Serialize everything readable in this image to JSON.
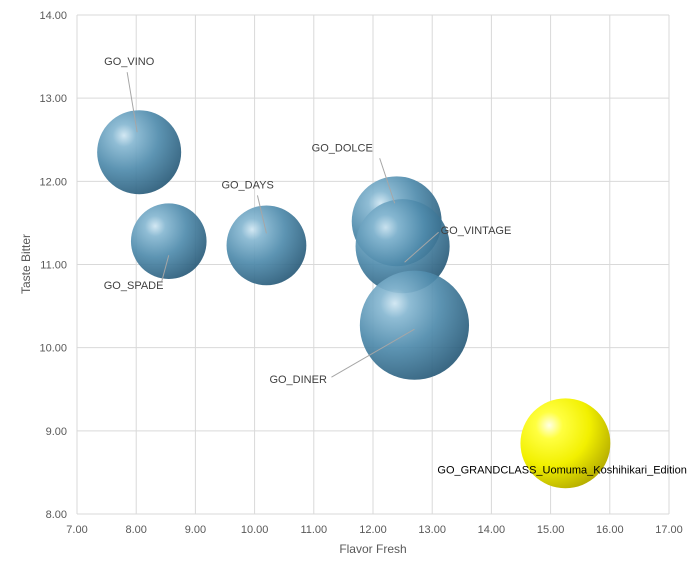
{
  "chart_data": {
    "type": "bubble",
    "xlabel": "Flavor Fresh",
    "ylabel": "Taste Bitter",
    "xlim": [
      7.0,
      17.0
    ],
    "ylim": [
      8.0,
      14.0
    ],
    "x_ticks": [
      "7.00",
      "8.00",
      "9.00",
      "10.00",
      "11.00",
      "12.00",
      "13.00",
      "14.00",
      "15.00",
      "16.00",
      "17.00"
    ],
    "y_ticks": [
      "8.00",
      "9.00",
      "10.00",
      "11.00",
      "12.00",
      "13.00",
      "14.00"
    ],
    "grid": true,
    "colors": {
      "default": "#4a86a8",
      "highlight": "#ffff00"
    },
    "points": [
      {
        "name": "GO_VINO",
        "x": 8.05,
        "y": 12.35,
        "size": 1.0
      },
      {
        "name": "GO_SPADE",
        "x": 8.55,
        "y": 11.28,
        "size": 0.9
      },
      {
        "name": "GO_DAYS",
        "x": 10.2,
        "y": 11.23,
        "size": 0.95
      },
      {
        "name": "GO_DOLCE",
        "x": 12.4,
        "y": 11.52,
        "size": 1.07
      },
      {
        "name": "GO_VINTAGE",
        "x": 12.5,
        "y": 11.22,
        "size": 1.12
      },
      {
        "name": "GO_DINER",
        "x": 12.7,
        "y": 10.27,
        "size": 1.3
      },
      {
        "name": "GO_GRANDCLASS_Uomuma_Koshihikari_Edition",
        "x": 15.25,
        "y": 8.85,
        "size": 1.07,
        "highlight": true
      }
    ]
  }
}
